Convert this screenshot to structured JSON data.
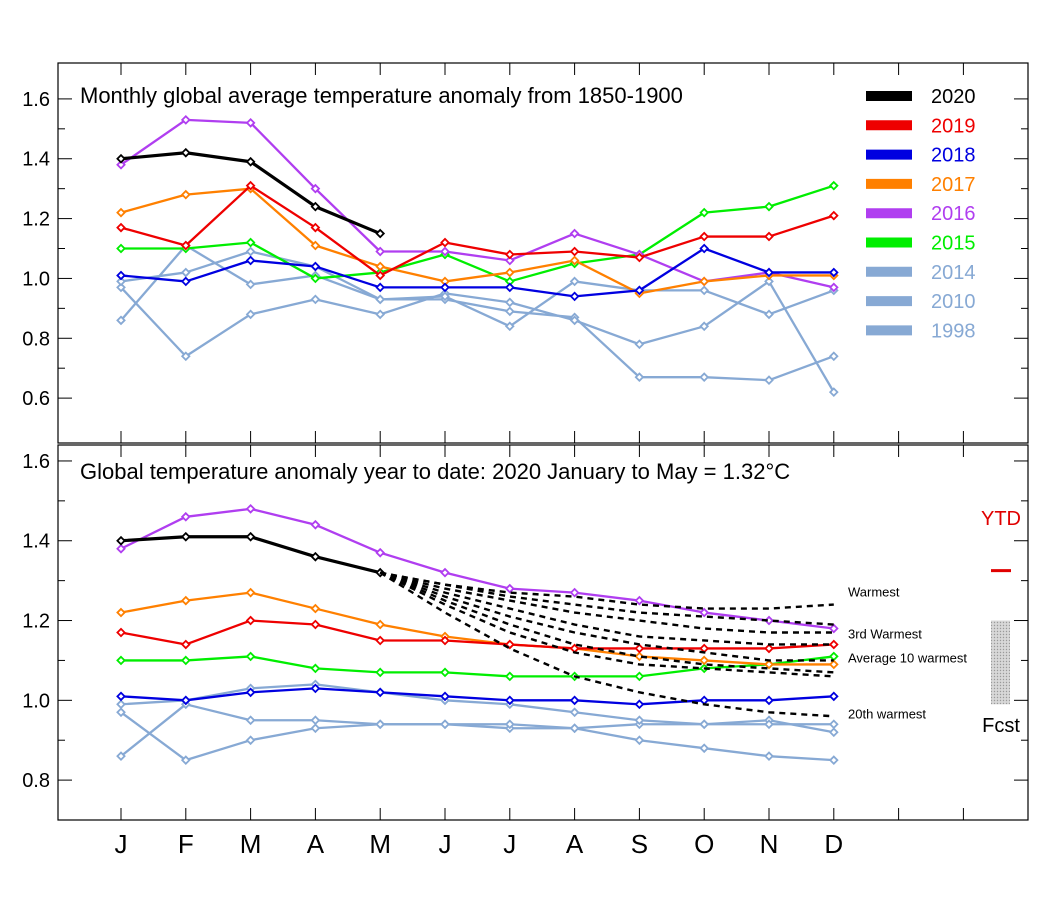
{
  "months": [
    "J",
    "F",
    "M",
    "A",
    "M",
    "J",
    "J",
    "A",
    "S",
    "O",
    "N",
    "D"
  ],
  "chart_data": [
    {
      "type": "line",
      "title": "Monthly global average temperature anomaly from 1850-1900",
      "xlabel": "",
      "ylabel": "",
      "ylim": [
        0.45,
        1.72
      ],
      "yticks": [
        "0.6",
        "0.8",
        "1.0",
        "1.2",
        "1.4",
        "1.6"
      ],
      "series": [
        {
          "name": "1998",
          "color": "#87a9d4",
          "values": [
            0.86,
            1.11,
            0.98,
            1.01,
            0.93,
            0.93,
            0.89,
            0.87,
            0.67,
            0.67,
            0.66,
            0.74
          ]
        },
        {
          "name": "2010",
          "color": "#87a9d4",
          "values": [
            0.97,
            0.74,
            0.88,
            0.93,
            0.88,
            0.95,
            0.92,
            0.86,
            0.78,
            0.84,
            0.99,
            0.62
          ]
        },
        {
          "name": "2014",
          "color": "#87a9d4",
          "values": [
            0.99,
            1.02,
            1.09,
            1.04,
            0.93,
            0.94,
            0.84,
            0.99,
            0.96,
            0.96,
            0.88,
            0.96
          ]
        },
        {
          "name": "2015",
          "color": "#00ee00",
          "values": [
            1.1,
            1.1,
            1.12,
            1.0,
            1.02,
            1.08,
            0.99,
            1.05,
            1.08,
            1.22,
            1.24,
            1.31
          ]
        },
        {
          "name": "2016",
          "color": "#b03ef0",
          "values": [
            1.38,
            1.53,
            1.52,
            1.3,
            1.09,
            1.09,
            1.06,
            1.15,
            1.08,
            0.99,
            1.02,
            0.97
          ]
        },
        {
          "name": "2017",
          "color": "#ff8000",
          "values": [
            1.22,
            1.28,
            1.3,
            1.11,
            1.04,
            0.99,
            1.02,
            1.06,
            0.95,
            0.99,
            1.01,
            1.01
          ]
        },
        {
          "name": "2018",
          "color": "#0000e0",
          "values": [
            1.01,
            0.99,
            1.06,
            1.04,
            0.97,
            0.97,
            0.97,
            0.94,
            0.96,
            1.1,
            1.02,
            1.02
          ]
        },
        {
          "name": "2019",
          "color": "#ee0000",
          "values": [
            1.17,
            1.11,
            1.31,
            1.17,
            1.01,
            1.12,
            1.08,
            1.09,
            1.07,
            1.14,
            1.14,
            1.21
          ]
        },
        {
          "name": "2020",
          "color": "#000000",
          "values": [
            1.4,
            1.42,
            1.39,
            1.24,
            1.15
          ]
        }
      ],
      "legend": [
        {
          "name": "2020",
          "color": "#000000"
        },
        {
          "name": "2019",
          "color": "#ee0000"
        },
        {
          "name": "2018",
          "color": "#0000e0"
        },
        {
          "name": "2017",
          "color": "#ff8000"
        },
        {
          "name": "2016",
          "color": "#b03ef0"
        },
        {
          "name": "2015",
          "color": "#00ee00"
        },
        {
          "name": "2014",
          "color": "#87a9d4"
        },
        {
          "name": "2010",
          "color": "#87a9d4"
        },
        {
          "name": "1998",
          "color": "#87a9d4"
        }
      ]
    },
    {
      "type": "line",
      "title": "Global temperature anomaly year to date: 2020 January to May = 1.32°C",
      "xlabel": "",
      "ylabel": "",
      "ylim": [
        0.7,
        1.64
      ],
      "yticks": [
        "0.8",
        "1.0",
        "1.2",
        "1.4",
        "1.6"
      ],
      "series": [
        {
          "name": "1998",
          "color": "#87a9d4",
          "values": [
            0.86,
            0.99,
            0.95,
            0.95,
            0.94,
            0.94,
            0.93,
            0.93,
            0.94,
            0.94,
            0.95,
            0.92
          ]
        },
        {
          "name": "2010",
          "color": "#87a9d4",
          "values": [
            0.97,
            0.85,
            0.9,
            0.93,
            0.94,
            0.94,
            0.94,
            0.93,
            0.9,
            0.88,
            0.86,
            0.85
          ]
        },
        {
          "name": "2014",
          "color": "#87a9d4",
          "values": [
            0.99,
            1.0,
            1.03,
            1.04,
            1.02,
            1.0,
            0.99,
            0.97,
            0.95,
            0.94,
            0.94,
            0.94
          ]
        },
        {
          "name": "2015",
          "color": "#00ee00",
          "values": [
            1.1,
            1.1,
            1.11,
            1.08,
            1.07,
            1.07,
            1.06,
            1.06,
            1.06,
            1.08,
            1.09,
            1.11
          ]
        },
        {
          "name": "2016",
          "color": "#b03ef0",
          "values": [
            1.38,
            1.46,
            1.48,
            1.44,
            1.37,
            1.32,
            1.28,
            1.27,
            1.25,
            1.22,
            1.2,
            1.18
          ]
        },
        {
          "name": "2017",
          "color": "#ff8000",
          "values": [
            1.22,
            1.25,
            1.27,
            1.23,
            1.19,
            1.16,
            1.14,
            1.13,
            1.11,
            1.1,
            1.09,
            1.09
          ]
        },
        {
          "name": "2018",
          "color": "#0000e0",
          "values": [
            1.01,
            1.0,
            1.02,
            1.03,
            1.02,
            1.01,
            1.0,
            1.0,
            0.99,
            1.0,
            1.0,
            1.01
          ]
        },
        {
          "name": "2019",
          "color": "#ee0000",
          "values": [
            1.17,
            1.14,
            1.2,
            1.19,
            1.15,
            1.15,
            1.14,
            1.13,
            1.13,
            1.13,
            1.13,
            1.14
          ]
        },
        {
          "name": "2020",
          "color": "#000000",
          "values": [
            1.4,
            1.41,
            1.41,
            1.36,
            1.32
          ]
        }
      ],
      "projections": [
        {
          "name": "Warmest",
          "values": [
            1.32,
            1.29,
            1.27,
            1.26,
            1.24,
            1.23,
            1.23,
            1.24
          ]
        },
        {
          "name": "",
          "values": [
            1.32,
            1.29,
            1.26,
            1.24,
            1.22,
            1.21,
            1.2,
            1.19
          ]
        },
        {
          "name": "3rd Warmest",
          "values": [
            1.32,
            1.28,
            1.25,
            1.22,
            1.2,
            1.18,
            1.17,
            1.17
          ]
        },
        {
          "name": "",
          "values": [
            1.32,
            1.27,
            1.23,
            1.19,
            1.16,
            1.15,
            1.14,
            1.14
          ]
        },
        {
          "name": "Average 10 warmest",
          "values": [
            1.32,
            1.26,
            1.21,
            1.17,
            1.14,
            1.12,
            1.1,
            1.1
          ]
        },
        {
          "name": "",
          "values": [
            1.32,
            1.25,
            1.19,
            1.14,
            1.11,
            1.09,
            1.08,
            1.07
          ]
        },
        {
          "name": "",
          "values": [
            1.32,
            1.24,
            1.17,
            1.12,
            1.09,
            1.08,
            1.07,
            1.06
          ]
        },
        {
          "name": "20th warmest",
          "values": [
            1.32,
            1.22,
            1.13,
            1.06,
            1.02,
            0.99,
            0.97,
            0.96
          ]
        }
      ],
      "ytd_label": "YTD",
      "ytd_value": 1.32,
      "forecast_label": "Fcst",
      "forecast_range": [
        0.99,
        1.2
      ]
    }
  ]
}
